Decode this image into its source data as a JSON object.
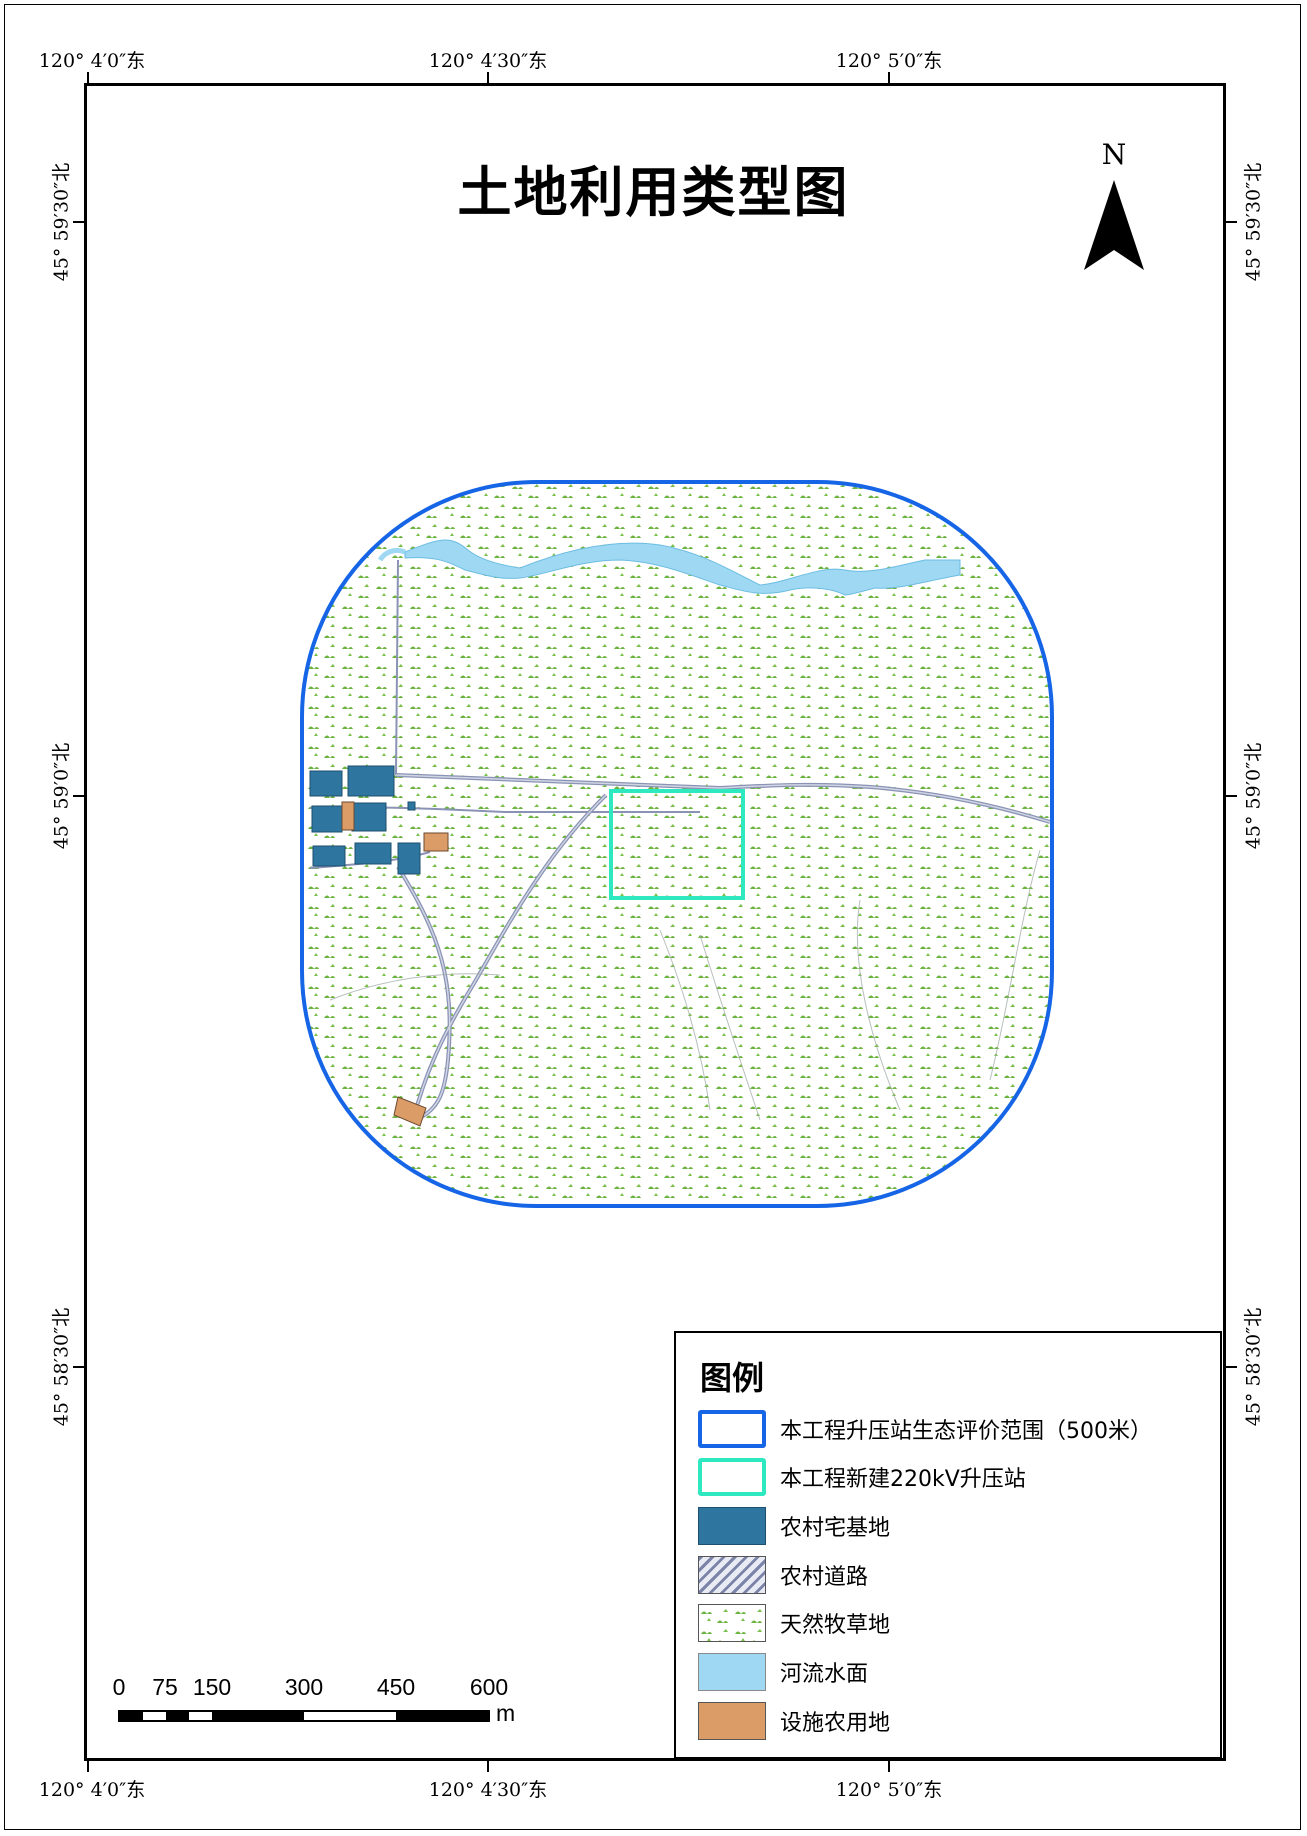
{
  "title": "土地利用类型图",
  "north_arrow": {
    "label": "N",
    "icon": "north-arrow-icon"
  },
  "coordinates": {
    "top": [
      "120° 4′0″东",
      "120° 4′30″东",
      "120° 5′0″东"
    ],
    "bottom": [
      "120° 4′0″东",
      "120° 4′30″东",
      "120° 5′0″东"
    ],
    "left": [
      "45° 59′30″北",
      "45° 59′0″北",
      "45° 58′30″北"
    ],
    "right": [
      "45° 59′30″北",
      "45° 59′0″北",
      "45° 58′30″北"
    ]
  },
  "legend": {
    "title": "图例",
    "items": [
      {
        "label": "本工程升压站生态评价范围（500米）",
        "color": "#1565e6",
        "style": "outline"
      },
      {
        "label": "本工程新建220kV升压站",
        "color": "#2ee8c0",
        "style": "outline"
      },
      {
        "label": "农村宅基地",
        "color": "#2e76a0",
        "style": "fill"
      },
      {
        "label": "农村道路",
        "color": "#8a93b5",
        "style": "hatch"
      },
      {
        "label": "天然牧草地",
        "color": "#6cb33f",
        "style": "grass"
      },
      {
        "label": "河流水面",
        "color": "#9fd8f2",
        "style": "fill"
      },
      {
        "label": "设施农用地",
        "color": "#dc9c68",
        "style": "fill"
      }
    ]
  },
  "scale_bar": {
    "labels": [
      "0",
      "75",
      "150",
      "300",
      "450",
      "600"
    ],
    "unit": "m"
  },
  "colors": {
    "boundary": "#1565e6",
    "substation": "#2ee8c0",
    "rural_homestead": "#2e76a0",
    "road": "#8a93b5",
    "grassland": "#6cb33f",
    "river": "#9fd8f2",
    "agri_facility": "#dc9c68"
  }
}
